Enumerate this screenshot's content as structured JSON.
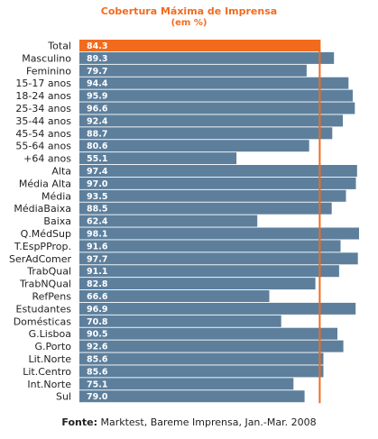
{
  "colors": {
    "accent": "#f26b1d",
    "bar": "#5d7f9c",
    "highlight_bar": "#f26b1d",
    "bar_label": "#ffffff",
    "category_label": "#222222"
  },
  "footer": {
    "label": "Fonte:",
    "text": "Marktest, Bareme Imprensa, Jan.-Mar. 2008"
  },
  "chart_data": {
    "type": "bar",
    "orientation": "horizontal",
    "title": "Cobertura Máxima de Imprensa",
    "subtitle": "(em %)",
    "xlim": [
      0,
      100
    ],
    "reference_line": 84.3,
    "highlight_category": "Total",
    "categories": [
      "Total",
      "Masculino",
      "Feminino",
      "15-17 anos",
      "18-24 anos",
      "25-34 anos",
      "35-44 anos",
      "45-54 anos",
      "55-64 anos",
      "+64 anos",
      "Alta",
      "Média Alta",
      "Média",
      "MédiaBaixa",
      "Baixa",
      "Q.MédSup",
      "T.EspPProp.",
      "SerAdComer",
      "TrabQual",
      "TrabNQual",
      "RefPens",
      "Estudantes",
      "Domésticas",
      "G.Lisboa",
      "G.Porto",
      "Lit.Norte",
      "Lit.Centro",
      "Int.Norte",
      "Sul"
    ],
    "values": [
      84.3,
      89.3,
      79.7,
      94.4,
      95.9,
      96.6,
      92.4,
      88.7,
      80.6,
      55.1,
      97.4,
      97.0,
      93.5,
      88.5,
      62.4,
      98.1,
      91.6,
      97.7,
      91.1,
      82.8,
      66.6,
      96.9,
      70.8,
      90.5,
      92.6,
      85.6,
      85.6,
      75.1,
      79.0
    ],
    "value_labels": [
      "84.3",
      "89.3",
      "79.7",
      "94.4",
      "95.9",
      "96.6",
      "92.4",
      "88.7",
      "80.6",
      "55.1",
      "97.4",
      "97.0",
      "93.5",
      "88.5",
      "62.4",
      "98.1",
      "91.6",
      "97.7",
      "91.1",
      "82.8",
      "66.6",
      "96.9",
      "70.8",
      "90.5",
      "92.6",
      "85.6",
      "85.6",
      "75.1",
      "79.0"
    ]
  }
}
